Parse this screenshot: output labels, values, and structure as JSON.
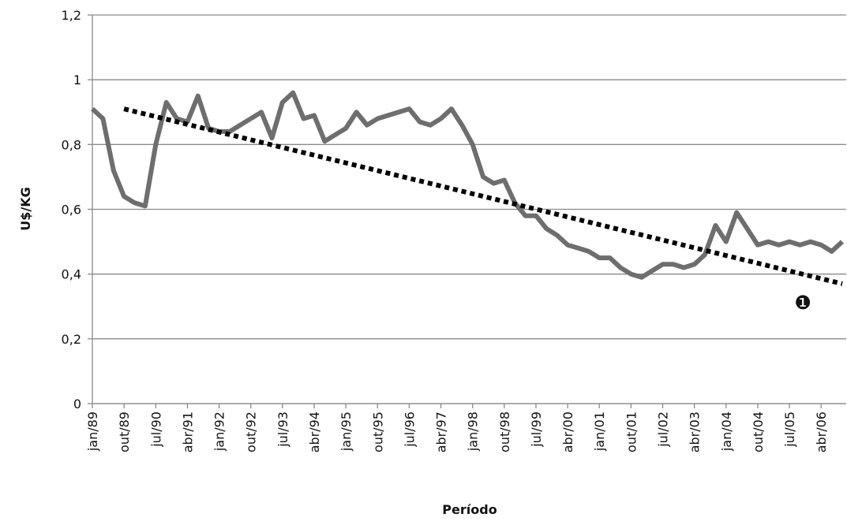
{
  "chart_data": {
    "type": "line",
    "y_label": "U$/KG",
    "x_label": "Período",
    "categories": [
      "jan/89",
      null,
      null,
      "out/89",
      null,
      null,
      "jul/90",
      null,
      null,
      "abr/91",
      null,
      null,
      "jan/92",
      null,
      null,
      "out/92",
      null,
      null,
      "jul/93",
      null,
      null,
      "abr/94",
      null,
      null,
      "jan/95",
      null,
      null,
      "out/95",
      null,
      null,
      "jul/96",
      null,
      null,
      "abr/97",
      null,
      null,
      "jan/98",
      null,
      null,
      "out/98",
      null,
      null,
      "jul/99",
      null,
      null,
      "abr/00",
      null,
      null,
      "jan/01",
      null,
      null,
      "out/01",
      null,
      null,
      "jul/02",
      null,
      null,
      "abr/03",
      null,
      null,
      "jan/04",
      null,
      null,
      "out/04",
      null,
      null,
      "jul/05",
      null,
      null,
      "abr/06",
      null,
      null
    ],
    "series": [
      {
        "color": "#6e6e6e",
        "values": [
          0.91,
          0.88,
          0.72,
          0.64,
          0.62,
          0.61,
          0.8,
          0.93,
          0.88,
          0.87,
          0.95,
          0.85,
          0.84,
          0.84,
          0.86,
          0.88,
          0.9,
          0.82,
          0.93,
          0.96,
          0.88,
          0.89,
          0.81,
          0.83,
          0.85,
          0.9,
          0.86,
          0.88,
          0.89,
          0.9,
          0.91,
          0.87,
          0.86,
          0.88,
          0.91,
          0.86,
          0.8,
          0.7,
          0.68,
          0.69,
          0.62,
          0.58,
          0.58,
          0.54,
          0.52,
          0.49,
          0.48,
          0.47,
          0.45,
          0.45,
          0.42,
          0.4,
          0.39,
          0.41,
          0.43,
          0.43,
          0.42,
          0.43,
          0.46,
          0.55,
          0.5,
          0.59,
          0.54,
          0.49,
          0.5,
          0.49,
          0.5,
          0.49,
          0.5,
          0.49,
          0.47,
          0.5
        ]
      }
    ],
    "trend": {
      "x": [
        3,
        71
      ],
      "values": [
        0.91,
        0.37
      ],
      "color": "#000000"
    },
    "annotation": "❶",
    "ylim": [
      0,
      1.2
    ],
    "yticks": [
      0,
      {
        "value": 0.2,
        "label": "0,2"
      },
      {
        "value": 0.4,
        "label": "0,4"
      },
      {
        "value": 0.6,
        "label": "0,6"
      },
      {
        "value": 0.8,
        "label": "0,8"
      },
      1,
      {
        "value": 1.2,
        "label": "1,2"
      }
    ],
    "grid": true
  }
}
